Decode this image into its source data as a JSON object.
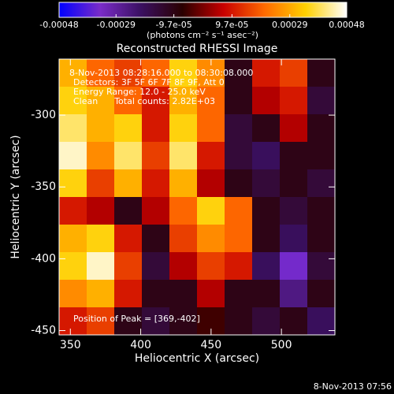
{
  "chart_data": {
    "type": "heatmap",
    "title": "Reconstructed RHESSI Image",
    "colorbar_label": "(photons cm⁻² s⁻¹ asec⁻²)",
    "zlim": [
      -0.00048,
      0.00048
    ],
    "zticks": [
      -0.00048,
      -0.00029,
      {
        "value": -9.7e-05,
        "label": "-9.7e-05"
      },
      {
        "value": 9.7e-05,
        "label": "9.7e-05"
      },
      0.00029,
      0.00048
    ],
    "colormap": [
      "#0000ff",
      "#7a2cc8",
      "#3a1060",
      "#2a0000",
      "#c80000",
      "#ff6a00",
      "#ffd000",
      "#ffffff"
    ],
    "x_label": "Heliocentric X (arcsec)",
    "y_label": "Heliocentric Y (arcsec)",
    "xlim": [
      342,
      538
    ],
    "ylim": [
      -453,
      -261
    ],
    "xticks": [
      350,
      400,
      450,
      500
    ],
    "yticks": [
      -300,
      -350,
      -400,
      -450
    ],
    "annotations": [
      "8-Nov-2013 08:28:16.000 to 08:30:08.000",
      "Detectors: 3F 5F 6F 7F 8F 9F, Att 0",
      "Energy Range: 12.0 - 25.0 keV",
      "Clean      Total counts: 2.82E+03"
    ],
    "peak_label": "Position of Peak = [369,-402]",
    "footer": "8-Nov-2013 07:56",
    "x": [
      351.8,
      371.4,
      391,
      410.6,
      430.2,
      449.8,
      469.4,
      489,
      508.6,
      528.2
    ],
    "y": [
      -270.6,
      -289.8,
      -309,
      -328.2,
      -347.4,
      -366.6,
      -385.8,
      -405,
      -424.2,
      -443.4
    ],
    "z": [
      [
        0.0003,
        0.0002,
        0.00015,
        0.0002,
        0.00035,
        0.00025,
        -0.0001,
        0.0001,
        0.00015,
        -0.0001
      ],
      [
        0.00035,
        0.0003,
        0.0002,
        0.0001,
        0.0003,
        0.0002,
        -0.0001,
        5e-05,
        0.0001,
        -0.00015
      ],
      [
        0.0004,
        0.0003,
        0.00035,
        0.0001,
        0.00035,
        0.0002,
        -0.00015,
        -0.0001,
        5e-05,
        -0.0001
      ],
      [
        0.00045,
        0.00025,
        0.0004,
        0.00015,
        0.0004,
        0.0001,
        -0.00015,
        -0.0002,
        -0.0001,
        -0.0001
      ],
      [
        0.00035,
        0.00015,
        0.0003,
        0.0001,
        0.0003,
        5e-05,
        -0.0001,
        -0.00015,
        -0.0001,
        -0.00015
      ],
      [
        0.0001,
        5e-05,
        -0.0001,
        5e-05,
        0.0002,
        0.00035,
        0.0002,
        -0.0001,
        -0.00015,
        -0.0001
      ],
      [
        0.0003,
        0.00035,
        0.0001,
        -0.0001,
        0.00015,
        0.00025,
        0.0002,
        -0.0001,
        -0.0002,
        -0.0001
      ],
      [
        0.00035,
        0.00045,
        0.00015,
        -0.00015,
        5e-05,
        0.00015,
        0.0001,
        -0.0002,
        -0.00035,
        -0.00015
      ],
      [
        0.00025,
        0.0003,
        0.0001,
        -0.0001,
        -0.0001,
        5e-05,
        -0.0001,
        -0.0001,
        -0.00025,
        -0.0001
      ],
      [
        0.0001,
        0.00015,
        -0.0001,
        -0.00015,
        -0.0001,
        -5e-05,
        -0.0001,
        -0.00015,
        -0.0001,
        -0.0002
      ]
    ]
  }
}
